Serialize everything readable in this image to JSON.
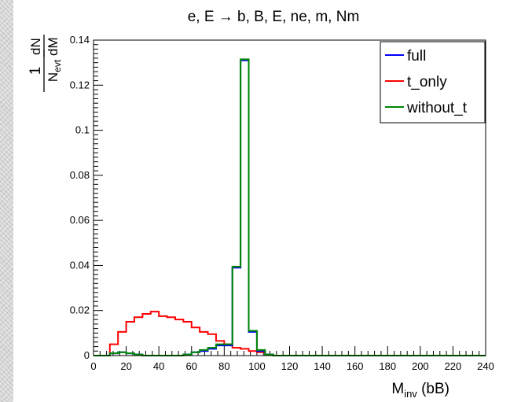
{
  "chart_data": {
    "type": "line",
    "title": "e, E → b, B, E, ne, m, Nm",
    "xlabel": {
      "main": "M",
      "sub": "inv",
      "suffix": " (bB)"
    },
    "ylabel": {
      "numerator_one": "1",
      "denominator_main": "N",
      "denominator_sub": "evt",
      "fraction_top": "dN",
      "fraction_bottom": "dM"
    },
    "xlim": [
      0,
      240
    ],
    "ylim": [
      0,
      0.14
    ],
    "x_ticks": [
      "0",
      "20",
      "40",
      "60",
      "80",
      "100",
      "120",
      "140",
      "160",
      "180",
      "200",
      "220",
      "240"
    ],
    "y_ticks": [
      "0",
      "0.02",
      "0.04",
      "0.06",
      "0.08",
      "0.1",
      "0.12",
      "0.14"
    ],
    "bin_width": 5,
    "legend_position": "top-right",
    "series": [
      {
        "name": "full",
        "color": "#0000ff",
        "values": [
          0,
          0,
          0.001,
          0.0015,
          0.001,
          0.0005,
          0,
          0,
          0,
          0,
          0,
          0.0005,
          0.0015,
          0.002,
          0.003,
          0.0045,
          0.0045,
          0.039,
          0.131,
          0.0105,
          0.002,
          0.0005,
          0,
          0,
          0,
          0,
          0,
          0,
          0,
          0,
          0,
          0,
          0,
          0,
          0,
          0,
          0,
          0,
          0,
          0,
          0,
          0,
          0,
          0,
          0,
          0,
          0,
          0
        ]
      },
      {
        "name": "t_only",
        "color": "#ff0000",
        "values": [
          0,
          0,
          0.005,
          0.0105,
          0.015,
          0.017,
          0.0185,
          0.0195,
          0.0175,
          0.017,
          0.016,
          0.015,
          0.0125,
          0.0105,
          0.0095,
          0.0065,
          0.005,
          0.0035,
          0.003,
          0.002,
          0.0015,
          0.0005,
          0,
          0,
          0,
          0,
          0,
          0,
          0,
          0,
          0,
          0,
          0,
          0,
          0,
          0,
          0,
          0,
          0,
          0,
          0,
          0,
          0,
          0,
          0,
          0,
          0,
          0
        ]
      },
      {
        "name": "without_t",
        "color": "#008800",
        "values": [
          0,
          0,
          0.001,
          0.0015,
          0.001,
          0.0005,
          0,
          0,
          0,
          0,
          0,
          0.0005,
          0.0015,
          0.0025,
          0.0035,
          0.005,
          0.005,
          0.0395,
          0.1315,
          0.011,
          0.0025,
          0.0005,
          0,
          0,
          0,
          0,
          0,
          0,
          0,
          0,
          0,
          0,
          0,
          0,
          0,
          0,
          0,
          0,
          0,
          0,
          0,
          0,
          0,
          0,
          0,
          0,
          0,
          0
        ]
      }
    ]
  }
}
